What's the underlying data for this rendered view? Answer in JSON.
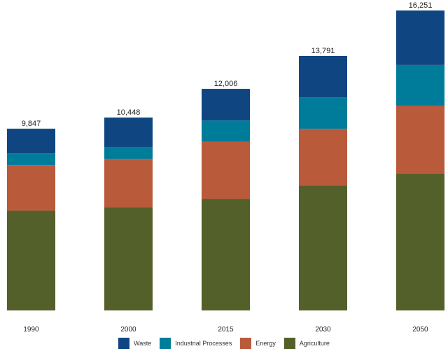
{
  "chart_data": {
    "type": "bar",
    "stacked": true,
    "title": "",
    "xlabel": "",
    "ylabel": "",
    "categories": [
      "1990",
      "2000",
      "2015",
      "2030",
      "2050"
    ],
    "totals": [
      "9,847",
      "10,448",
      "12,006",
      "13,791",
      "16,251"
    ],
    "total_values": [
      9847,
      10448,
      12006,
      13791,
      16251
    ],
    "series": [
      {
        "name": "Agriculture",
        "color": "#546029",
        "values": [
          5400,
          5590,
          6040,
          6760,
          7410
        ]
      },
      {
        "name": "Energy",
        "color": "#b95a3b",
        "values": [
          2470,
          2620,
          3110,
          3080,
          3690
        ]
      },
      {
        "name": "Industrial Processes",
        "color": "#007c9b",
        "values": [
          650,
          640,
          1140,
          1710,
          2200
        ]
      },
      {
        "name": "Waste",
        "color": "#0f4682",
        "values": [
          1327,
          1598,
          1716,
          2241,
          2951
        ]
      }
    ],
    "ylim": [
      0,
      16251
    ],
    "grid": false,
    "y_axis_visible": false,
    "legend": {
      "placement": "bottom",
      "order": [
        "Waste",
        "Industrial Processes",
        "Energy",
        "Agriculture"
      ]
    }
  }
}
